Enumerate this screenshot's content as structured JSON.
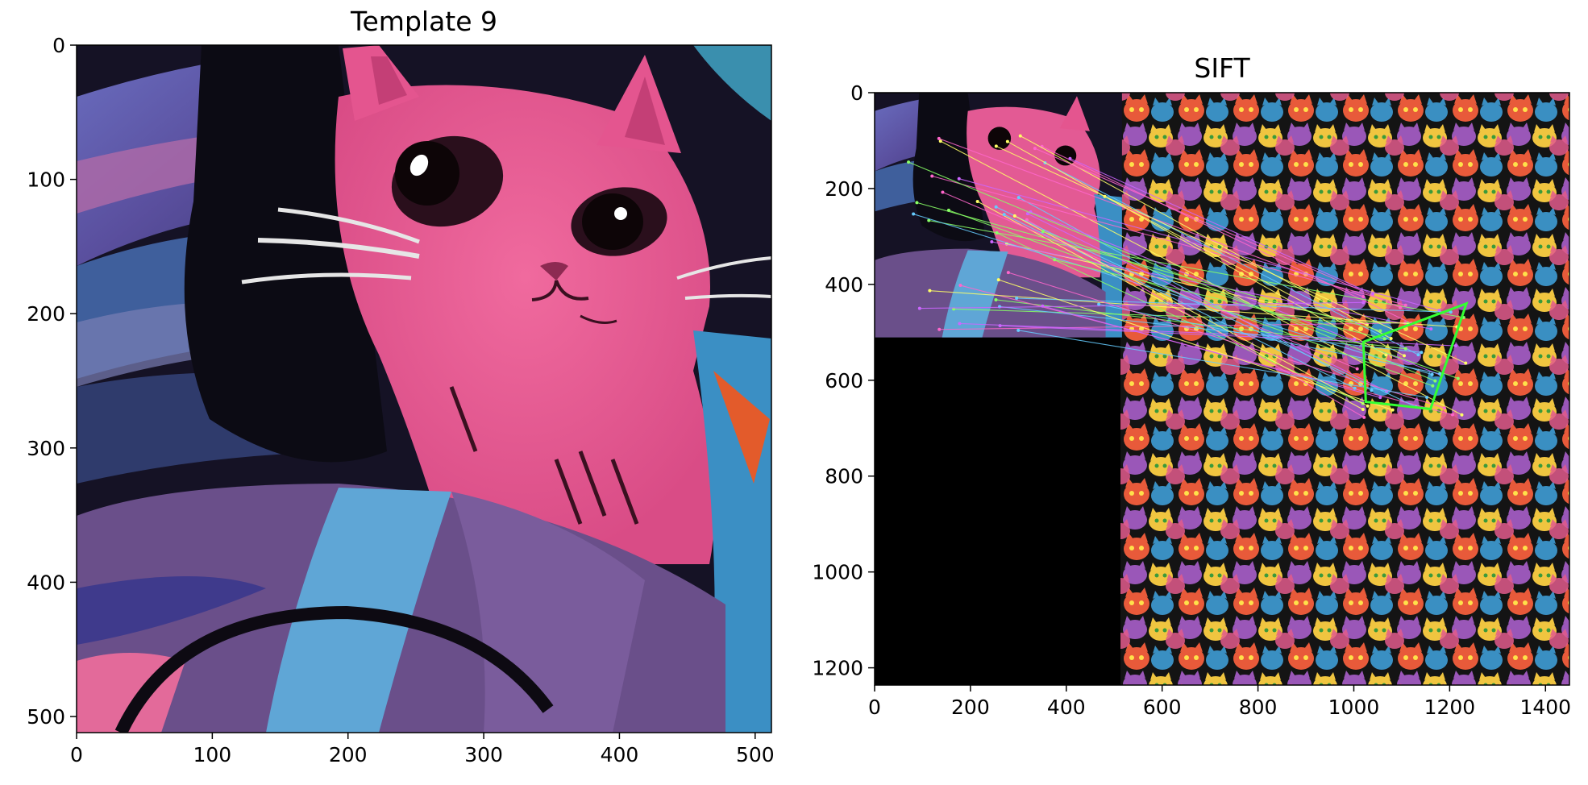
{
  "figure": {
    "panels": [
      {
        "title": "Template 9",
        "image": "pink cat template crop",
        "x_ticks": [
          "0",
          "100",
          "200",
          "300",
          "400",
          "500"
        ],
        "y_ticks": [
          "0",
          "100",
          "200",
          "300",
          "400",
          "500"
        ],
        "x_range": [
          0,
          512
        ],
        "y_range": [
          0,
          512
        ]
      },
      {
        "title": "SIFT",
        "image": "template and cat mosaic side-by-side with SIFT keypoint matches and detected quadrilateral",
        "x_ticks": [
          "0",
          "200",
          "400",
          "600",
          "800",
          "1000",
          "1200",
          "1400"
        ],
        "y_ticks": [
          "0",
          "200",
          "400",
          "600",
          "800",
          "1000",
          "1200"
        ],
        "x_range": [
          0,
          1450
        ],
        "y_range": [
          0,
          1236
        ],
        "template_extent": [
          512,
          512
        ],
        "detected_quad": [
          [
            1020,
            520
          ],
          [
            1235,
            440
          ],
          [
            1160,
            660
          ],
          [
            1025,
            645
          ]
        ],
        "colors": {
          "quad": "#33ff33",
          "matches": [
            "#ffff66",
            "#88ff66",
            "#cc66ff",
            "#ff66cc",
            "#66ccff"
          ]
        }
      }
    ]
  }
}
